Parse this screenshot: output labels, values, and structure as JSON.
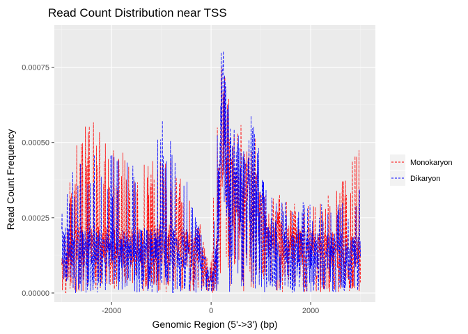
{
  "chart_data": {
    "type": "line",
    "title": "Read Count Distribution near TSS",
    "xlabel": "Genomic Region (5'->3') (bp)",
    "ylabel": "Read Count Frequency",
    "xlim": [
      -3150,
      3300
    ],
    "ylim": [
      -3e-05,
      0.00089
    ],
    "x_ticks": [
      -2000,
      0,
      2000
    ],
    "x_tick_labels": [
      "-2000",
      "0",
      "2000"
    ],
    "y_ticks": [
      0,
      0.00025,
      0.0005,
      0.00075
    ],
    "y_tick_labels": [
      "0.00000",
      "0.00025",
      "0.00050",
      "0.00075"
    ],
    "grid": true,
    "legend_position": "right",
    "series": [
      {
        "name": "Monokaryon",
        "color": "#ff0000",
        "line_style": "dashed",
        "profile": {
          "x": [
            -3000,
            -2500,
            -2000,
            -1500,
            -1000,
            -500,
            -200,
            -50,
            0,
            80,
            150,
            200,
            250,
            300,
            400,
            600,
            800,
            1000,
            1200,
            1500,
            2000,
            2500,
            3000
          ],
          "baseline": [
            0.00015,
            0.00016,
            0.00015,
            0.00015,
            0.00016,
            0.00015,
            0.00012,
            5e-05,
            3e-05,
            0.0001,
            0.00032,
            0.00048,
            0.00052,
            0.0005,
            0.00036,
            0.00032,
            0.00032,
            0.00026,
            0.00018,
            0.00016,
            0.00015,
            0.00014,
            0.00013
          ],
          "peak": [
            0.00035,
            0.0006,
            0.00048,
            0.00045,
            0.00048,
            0.00037,
            0.00022,
            0.0001,
            0.00012,
            0.00045,
            0.0007,
            0.00083,
            0.00078,
            0.0007,
            0.0006,
            0.00056,
            0.00055,
            0.00049,
            0.00035,
            0.00032,
            0.00032,
            0.00035,
            0.0005
          ]
        }
      },
      {
        "name": "Dikaryon",
        "color": "#0000ff",
        "line_style": "dashed",
        "profile": {
          "x": [
            -3000,
            -2500,
            -2000,
            -1500,
            -1000,
            -500,
            -200,
            -50,
            0,
            80,
            150,
            200,
            250,
            300,
            400,
            600,
            800,
            1000,
            1200,
            1500,
            2000,
            2500,
            3000
          ],
          "baseline": [
            0.00015,
            0.00015,
            0.00015,
            0.00015,
            0.00016,
            0.00015,
            0.00012,
            5e-05,
            3e-05,
            0.0001,
            0.0003,
            0.00046,
            0.0005,
            0.00048,
            0.00036,
            0.00033,
            0.00034,
            0.00026,
            0.00018,
            0.00015,
            0.00014,
            0.00014,
            0.00013
          ],
          "peak": [
            0.00034,
            0.00048,
            0.00046,
            0.00045,
            0.00064,
            0.00038,
            0.0002,
            0.0001,
            0.00012,
            0.00042,
            0.00071,
            0.00087,
            0.0008,
            0.00072,
            0.00062,
            0.00055,
            0.0006,
            0.00047,
            0.00033,
            0.00031,
            0.0003,
            0.0003,
            0.00035
          ]
        }
      }
    ]
  }
}
